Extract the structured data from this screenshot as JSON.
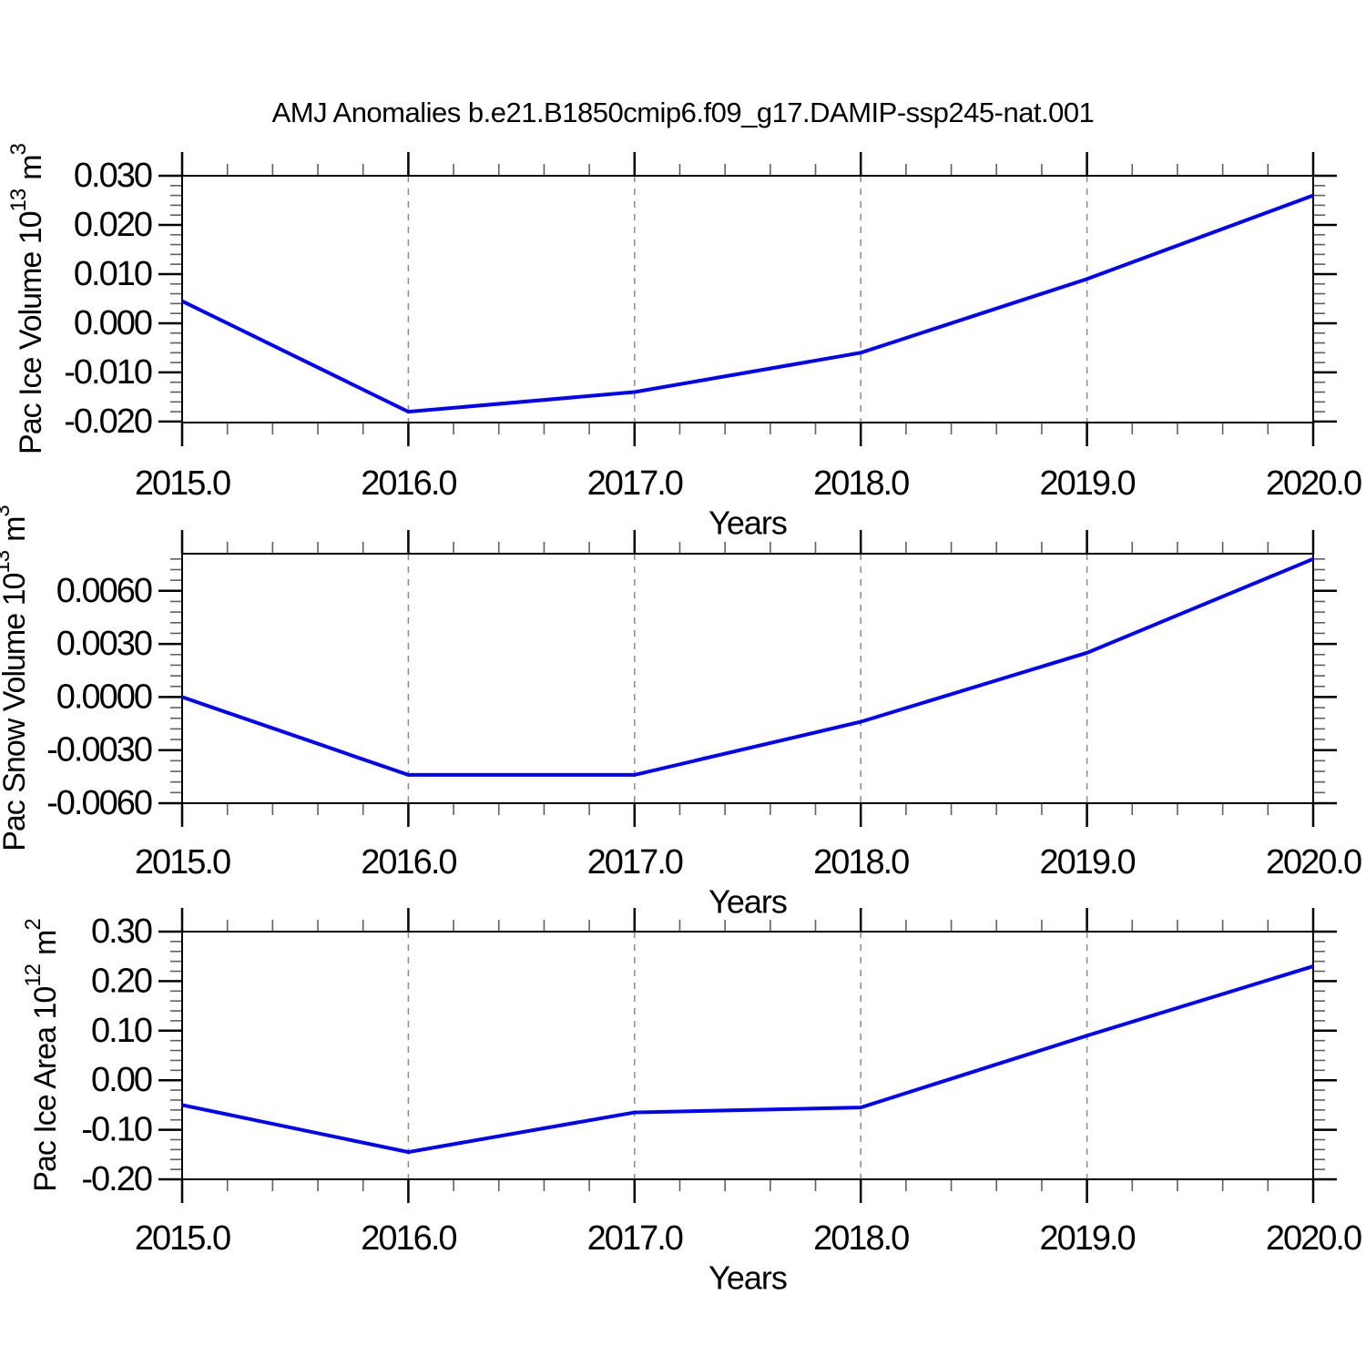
{
  "figure": {
    "title": "AMJ Anomalies b.e21.B1850cmip6.f09_g17.DAMIP-ssp245-nat.001",
    "colors": {
      "line": "#0000ff",
      "grid": "#8a8a8a",
      "axis": "#000000",
      "minor_tick": "#606060",
      "text": "#000000",
      "background": "#ffffff"
    }
  },
  "chart_data": [
    {
      "type": "line",
      "name": "pac-ice-volume",
      "xlabel": "Years",
      "ylabel_text": "Pac Ice Volume 10^13 m^3",
      "ylabel_parts": {
        "base": "Pac Ice Volume 10",
        "exp": "13",
        "unit": "m",
        "unit_exp": "3"
      },
      "x": [
        2015,
        2016,
        2017,
        2018,
        2019,
        2020
      ],
      "values": [
        0.0045,
        -0.018,
        -0.014,
        -0.006,
        0.009,
        0.026
      ],
      "xlim": [
        2015,
        2020
      ],
      "ylim": [
        -0.0202,
        0.03
      ],
      "x_minor_step": 0.2,
      "y_minor_step": 0.002,
      "grid_x": [
        2016,
        2017,
        2018,
        2019
      ],
      "grid_style": "vertical-dashed",
      "legend": "none",
      "xticks": [
        {
          "v": 2015,
          "label": "2015.0"
        },
        {
          "v": 2016,
          "label": "2016.0"
        },
        {
          "v": 2017,
          "label": "2017.0"
        },
        {
          "v": 2018,
          "label": "2018.0"
        },
        {
          "v": 2019,
          "label": "2019.0"
        },
        {
          "v": 2020,
          "label": "2020.0"
        }
      ],
      "yticks": [
        {
          "v": 0.03,
          "label": "0.030"
        },
        {
          "v": 0.02,
          "label": "0.020"
        },
        {
          "v": 0.01,
          "label": "0.010"
        },
        {
          "v": 0.0,
          "label": "0.000"
        },
        {
          "v": -0.01,
          "label": "-0.010"
        },
        {
          "v": -0.02,
          "label": "-0.020"
        }
      ]
    },
    {
      "type": "line",
      "name": "pac-snow-volume",
      "xlabel": "Years",
      "ylabel_text": "Pac Snow Volume 10^13 m^3",
      "ylabel_parts": {
        "base": "Pac Snow Volume 10",
        "exp": "13",
        "unit": "m",
        "unit_exp": "3"
      },
      "x": [
        2015,
        2016,
        2017,
        2018,
        2019,
        2020
      ],
      "values": [
        0.0,
        -0.0044,
        -0.0044,
        -0.0014,
        0.0025,
        0.0078
      ],
      "xlim": [
        2015,
        2020
      ],
      "ylim": [
        -0.006,
        0.0081
      ],
      "x_minor_step": 0.2,
      "y_minor_step": 0.0006,
      "grid_x": [
        2016,
        2017,
        2018,
        2019
      ],
      "grid_style": "vertical-dashed",
      "legend": "none",
      "xticks": [
        {
          "v": 2015,
          "label": "2015.0"
        },
        {
          "v": 2016,
          "label": "2016.0"
        },
        {
          "v": 2017,
          "label": "2017.0"
        },
        {
          "v": 2018,
          "label": "2018.0"
        },
        {
          "v": 2019,
          "label": "2019.0"
        },
        {
          "v": 2020,
          "label": "2020.0"
        }
      ],
      "yticks": [
        {
          "v": 0.006,
          "label": "0.0060"
        },
        {
          "v": 0.003,
          "label": "0.0030"
        },
        {
          "v": 0.0,
          "label": "0.0000"
        },
        {
          "v": -0.003,
          "label": "-0.0030"
        },
        {
          "v": -0.006,
          "label": "-0.0060"
        }
      ]
    },
    {
      "type": "line",
      "name": "pac-ice-area",
      "xlabel": "Years",
      "ylabel_text": "Pac Ice Area 10^12 m^2",
      "ylabel_parts": {
        "base": "Pac Ice Area 10",
        "exp": "12",
        "unit": "m",
        "unit_exp": "2"
      },
      "x": [
        2015,
        2016,
        2017,
        2018,
        2019,
        2020
      ],
      "values": [
        -0.05,
        -0.145,
        -0.065,
        -0.055,
        0.09,
        0.23
      ],
      "xlim": [
        2015,
        2020
      ],
      "ylim": [
        -0.2,
        0.3
      ],
      "x_minor_step": 0.2,
      "y_minor_step": 0.02,
      "grid_x": [
        2016,
        2017,
        2018,
        2019
      ],
      "grid_style": "vertical-dashed",
      "legend": "none",
      "xticks": [
        {
          "v": 2015,
          "label": "2015.0"
        },
        {
          "v": 2016,
          "label": "2016.0"
        },
        {
          "v": 2017,
          "label": "2017.0"
        },
        {
          "v": 2018,
          "label": "2018.0"
        },
        {
          "v": 2019,
          "label": "2019.0"
        },
        {
          "v": 2020,
          "label": "2020.0"
        }
      ],
      "yticks": [
        {
          "v": 0.3,
          "label": "0.30"
        },
        {
          "v": 0.2,
          "label": "0.20"
        },
        {
          "v": 0.1,
          "label": "0.10"
        },
        {
          "v": 0.0,
          "label": "0.00"
        },
        {
          "v": -0.1,
          "label": "-0.10"
        },
        {
          "v": -0.2,
          "label": "-0.20"
        }
      ]
    }
  ]
}
